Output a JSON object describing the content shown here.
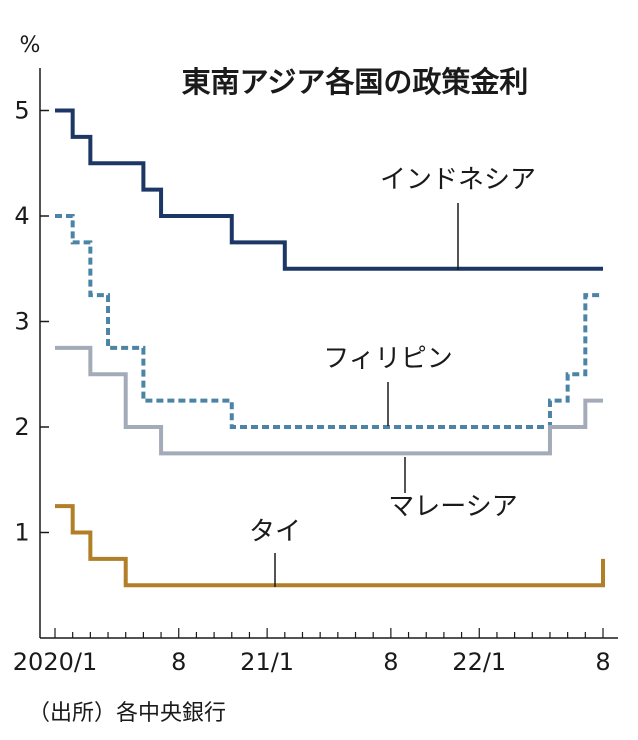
{
  "chart_data": {
    "type": "line",
    "title": "東南アジア各国の政策金利",
    "unit": "%",
    "source": "（出所）各中央銀行",
    "ylim": [
      0,
      5.5
    ],
    "y_ticks": [
      1,
      2,
      3,
      4,
      5
    ],
    "x_range": [
      "2019-12",
      "2022-08"
    ],
    "x_ticks": [
      {
        "month": "2020-01",
        "label": "2020/1"
      },
      {
        "month": "2020-08",
        "label": "8"
      },
      {
        "month": "2021-01",
        "label": "21/1"
      },
      {
        "month": "2021-08",
        "label": "8"
      },
      {
        "month": "2022-01",
        "label": "22/1"
      },
      {
        "month": "2022-08",
        "label": "8"
      }
    ],
    "grid": false,
    "step": true,
    "series": [
      {
        "name": "インドネシア",
        "color": "#1c3765",
        "dash": "solid",
        "points": [
          [
            "2020-01",
            5.0
          ],
          [
            "2020-02",
            4.75
          ],
          [
            "2020-03",
            4.5
          ],
          [
            "2020-06",
            4.25
          ],
          [
            "2020-07",
            4.0
          ],
          [
            "2020-11",
            3.75
          ],
          [
            "2021-02",
            3.5
          ],
          [
            "2022-08",
            3.5
          ]
        ]
      },
      {
        "name": "フィリピン",
        "color": "#4b84a6",
        "dash": "dashed",
        "points": [
          [
            "2020-01",
            4.0
          ],
          [
            "2020-02",
            3.75
          ],
          [
            "2020-03",
            3.25
          ],
          [
            "2020-04",
            2.75
          ],
          [
            "2020-06",
            2.25
          ],
          [
            "2020-11",
            2.0
          ],
          [
            "2022-05",
            2.25
          ],
          [
            "2022-06",
            2.5
          ],
          [
            "2022-07",
            3.25
          ],
          [
            "2022-08",
            3.25
          ]
        ]
      },
      {
        "name": "マレーシア",
        "color": "#a4abb8",
        "dash": "solid",
        "points": [
          [
            "2020-01",
            2.75
          ],
          [
            "2020-03",
            2.5
          ],
          [
            "2020-05",
            2.0
          ],
          [
            "2020-07",
            1.75
          ],
          [
            "2022-05",
            2.0
          ],
          [
            "2022-07",
            2.25
          ],
          [
            "2022-08",
            2.25
          ]
        ]
      },
      {
        "name": "タイ",
        "color": "#b07f28",
        "dash": "solid",
        "points": [
          [
            "2020-01",
            1.25
          ],
          [
            "2020-02",
            1.0
          ],
          [
            "2020-03",
            0.75
          ],
          [
            "2020-05",
            0.5
          ],
          [
            "2022-08",
            0.5
          ],
          [
            "2022-08",
            0.75
          ]
        ]
      }
    ]
  }
}
